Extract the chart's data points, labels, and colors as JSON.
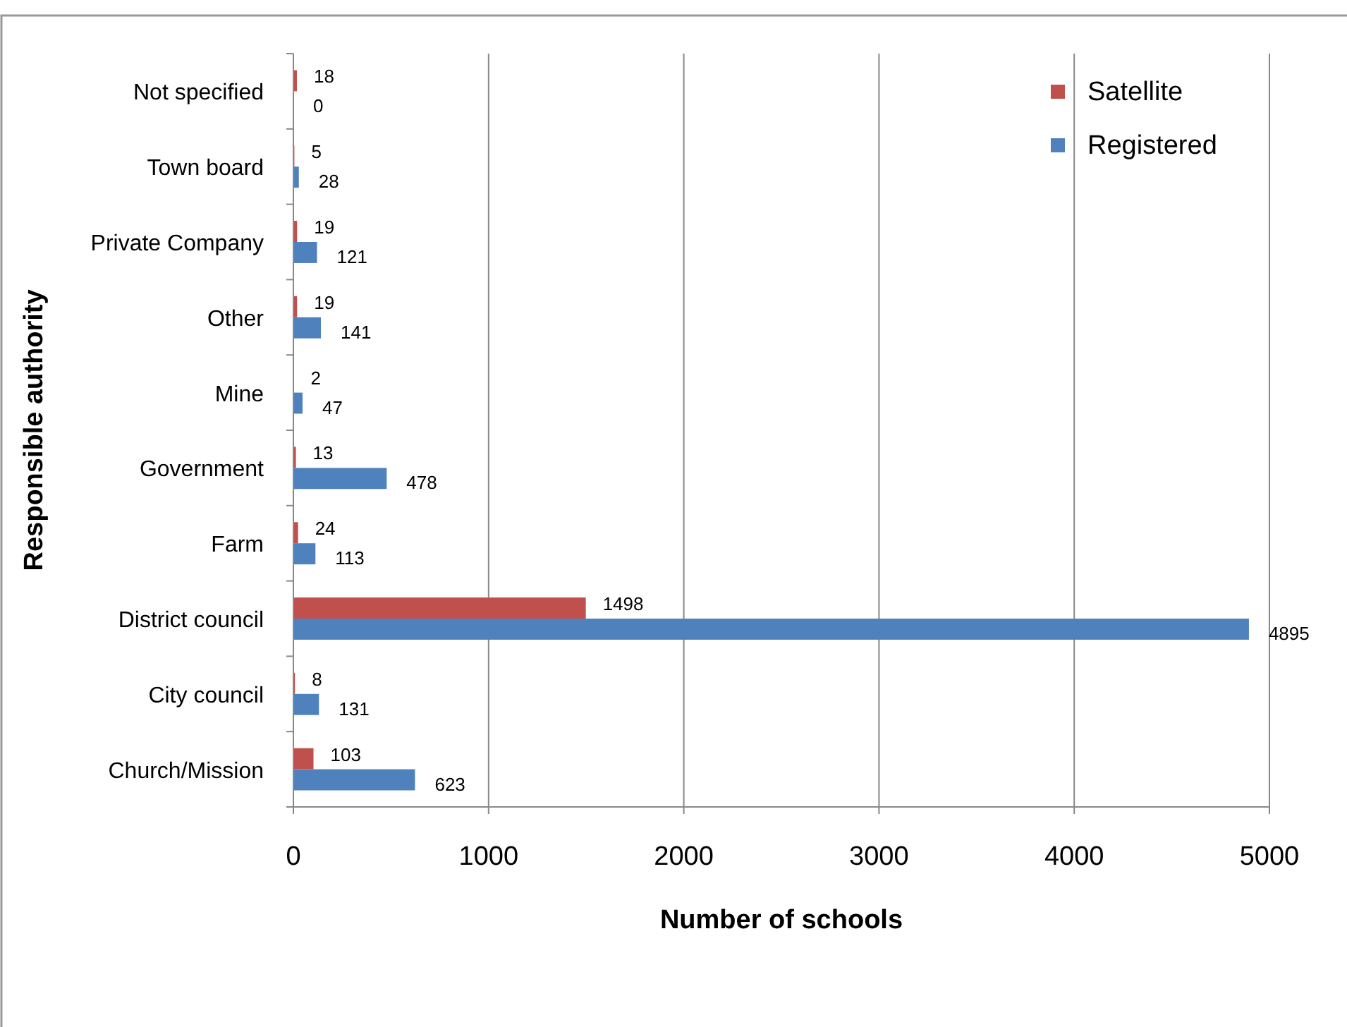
{
  "chart_data": {
    "type": "bar",
    "orientation": "horizontal",
    "xlabel": "Number of schools",
    "ylabel": "Responsible authority",
    "categories": [
      "Not specified",
      "Town board",
      "Private Company",
      "Other",
      "Mine",
      "Government",
      "Farm",
      "District council",
      "City council",
      "Church/Mission"
    ],
    "series": [
      {
        "name": "Satellite",
        "color": "#c0504d",
        "values": [
          18,
          5,
          19,
          19,
          2,
          13,
          24,
          1498,
          8,
          103
        ]
      },
      {
        "name": "Registered",
        "color": "#4f81bd",
        "values": [
          0,
          28,
          121,
          141,
          47,
          478,
          113,
          4895,
          131,
          623
        ]
      }
    ],
    "xlim": [
      0,
      5000
    ],
    "xticks": [
      0,
      1000,
      2000,
      3000,
      4000,
      5000
    ],
    "grid": "x",
    "legend": "top right",
    "data_labels": true
  }
}
